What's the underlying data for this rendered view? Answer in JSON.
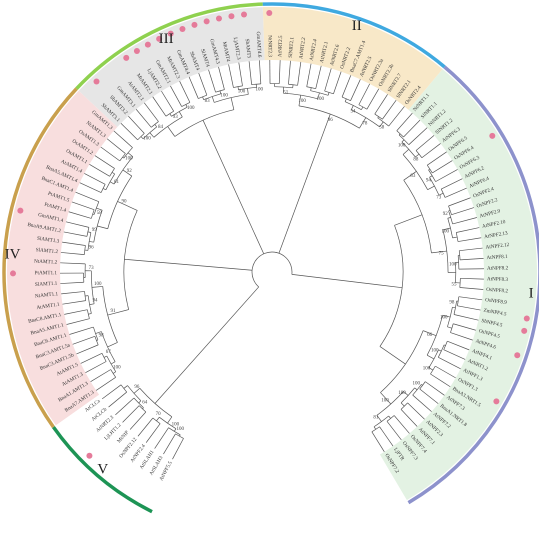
{
  "colors": {
    "I_bg": "#e3f2e3",
    "I_arc": "#8d92cc",
    "II_bg": "#f8e8c8",
    "II_arc": "#3fa9e0",
    "III_bg": "#e6e6e6",
    "III_arc": "#8fd14f",
    "IV_bg": "#f8dede",
    "IV_arc": "#c9a04d",
    "V_bg": "#ffffff",
    "V_arc": "#1d9455",
    "marker": "#e57b9a"
  },
  "clades": [
    {
      "key": "I",
      "label": "I"
    },
    {
      "key": "II",
      "label": "II"
    },
    {
      "key": "III",
      "label": "III"
    },
    {
      "key": "IV",
      "label": "IV"
    },
    {
      "key": "V",
      "label": "V"
    }
  ],
  "leaves": [
    {
      "label": "AtNPF5.5",
      "clade": "V",
      "marker": false
    },
    {
      "label": "AtSLAH3",
      "clade": "V",
      "marker": false
    },
    {
      "label": "AtSLAH1",
      "clade": "V",
      "marker": false
    },
    {
      "label": "AtNPF2.4",
      "clade": "V",
      "marker": false
    },
    {
      "label": "OsNPF2.12",
      "clade": "V",
      "marker": false
    },
    {
      "label": "MtNIP",
      "clade": "V",
      "marker": false
    },
    {
      "label": "LjLHT1.2",
      "clade": "V",
      "marker": true
    },
    {
      "label": "AtNRT2.3",
      "clade": "V",
      "marker": false
    },
    {
      "label": "AtCLCb",
      "clade": "V",
      "marker": false
    },
    {
      "label": "AtCLCa",
      "clade": "V",
      "marker": false
    },
    {
      "label": "BnaA7.AMT1.3",
      "clade": "IV",
      "marker": false
    },
    {
      "label": "BnaA1.AMT1.3",
      "clade": "IV",
      "marker": false
    },
    {
      "label": "AtAMT1.3",
      "clade": "IV",
      "marker": false
    },
    {
      "label": "AtAMT1.5",
      "clade": "IV",
      "marker": false
    },
    {
      "label": "BnaC3.AMT1.5b",
      "clade": "IV",
      "marker": false
    },
    {
      "label": "BnaC3.AMT1.5a",
      "clade": "IV",
      "marker": false
    },
    {
      "label": "BnaC6.AMT1.1",
      "clade": "IV",
      "marker": false
    },
    {
      "label": "BnaA5.AMT1.1",
      "clade": "IV",
      "marker": false
    },
    {
      "label": "BnaC8.AMT1.1",
      "clade": "IV",
      "marker": false
    },
    {
      "label": "AtAMT1.1",
      "clade": "IV",
      "marker": false
    },
    {
      "label": "NtAMT1.1",
      "clade": "IV",
      "marker": false
    },
    {
      "label": "SlAMT1.1",
      "clade": "IV",
      "marker": false
    },
    {
      "label": "PtAMT1.1",
      "clade": "IV",
      "marker": true
    },
    {
      "label": "NtAMT1.2",
      "clade": "IV",
      "marker": false
    },
    {
      "label": "SlAMT1.2",
      "clade": "IV",
      "marker": false
    },
    {
      "label": "SlAMT1.3",
      "clade": "IV",
      "marker": false
    },
    {
      "label": "BnaA9.AMT1.2",
      "clade": "IV",
      "marker": false
    },
    {
      "label": "GmAMT1.4",
      "clade": "IV",
      "marker": true
    },
    {
      "label": "PtAMT1.4",
      "clade": "IV",
      "marker": false
    },
    {
      "label": "PtAMT1.5",
      "clade": "IV",
      "marker": false
    },
    {
      "label": "BnaC1.AMT1.4",
      "clade": "IV",
      "marker": false
    },
    {
      "label": "BnaA5.AMT1.4",
      "clade": "IV",
      "marker": false
    },
    {
      "label": "AtAMT1.4",
      "clade": "IV",
      "marker": false
    },
    {
      "label": "OsAMT1.1",
      "clade": "IV",
      "marker": false
    },
    {
      "label": "OsAMT1.2",
      "clade": "IV",
      "marker": false
    },
    {
      "label": "OsAMT1.3",
      "clade": "IV",
      "marker": false
    },
    {
      "label": "NtAMT1.3",
      "clade": "IV",
      "marker": false
    },
    {
      "label": "GmAMT1.3",
      "clade": "IV",
      "marker": false
    },
    {
      "label": "SbAMT3.1",
      "clade": "III",
      "marker": false
    },
    {
      "label": "SbAMT3.2",
      "clade": "III",
      "marker": true
    },
    {
      "label": "GmAMT3.1",
      "clade": "III",
      "marker": false
    },
    {
      "label": "AtAMT2.1",
      "clade": "III",
      "marker": false
    },
    {
      "label": "MtAMT2.1",
      "clade": "III",
      "marker": true
    },
    {
      "label": "LjAMT2.2",
      "clade": "III",
      "marker": true
    },
    {
      "label": "GmAMT2.1",
      "clade": "III",
      "marker": true
    },
    {
      "label": "MtAMT2.3",
      "clade": "III",
      "marker": true
    },
    {
      "label": "GmAMT4.4",
      "clade": "III",
      "marker": true
    },
    {
      "label": "SbAMT4",
      "clade": "III",
      "marker": true
    },
    {
      "label": "SlAMT4",
      "clade": "III",
      "marker": true
    },
    {
      "label": "GmAMT4.3",
      "clade": "III",
      "marker": true
    },
    {
      "label": "MtAMT4",
      "clade": "III",
      "marker": true
    },
    {
      "label": "LjAMT2.3",
      "clade": "III",
      "marker": true
    },
    {
      "label": "SbAMT5",
      "clade": "III",
      "marker": true
    },
    {
      "label": "GmAMT4.6",
      "clade": "III",
      "marker": false
    },
    {
      "label": "NtNRT2.3",
      "clade": "II",
      "marker": true
    },
    {
      "label": "AtNRT2.5",
      "clade": "II",
      "marker": false
    },
    {
      "label": "SlNRT2.1",
      "clade": "II",
      "marker": false
    },
    {
      "label": "AtNRT2.2",
      "clade": "II",
      "marker": false
    },
    {
      "label": "AtNRT2.4",
      "clade": "II",
      "marker": false
    },
    {
      "label": "AtNRT2.1",
      "clade": "II",
      "marker": false
    },
    {
      "label": "AtNRT2.6",
      "clade": "II",
      "marker": false
    },
    {
      "label": "OsNRT2.2",
      "clade": "II",
      "marker": false
    },
    {
      "label": "BnaC7.AMT1.4",
      "clade": "II",
      "marker": false
    },
    {
      "label": "AtNRT2.5",
      "clade": "II",
      "marker": false
    },
    {
      "label": "OsNRT2.3a",
      "clade": "II",
      "marker": false
    },
    {
      "label": "OsNRT2.3b",
      "clade": "II",
      "marker": false
    },
    {
      "label": "SlNRT2.7",
      "clade": "II",
      "marker": false
    },
    {
      "label": "SlNRT2.1",
      "clade": "II",
      "marker": false
    },
    {
      "label": "OsNRT2.4",
      "clade": "II",
      "marker": false
    },
    {
      "label": "NtNRT1.1",
      "clade": "I",
      "marker": false
    },
    {
      "label": "SlNRT1.1",
      "clade": "I",
      "marker": false
    },
    {
      "label": "NtNRT1.2",
      "clade": "I",
      "marker": false
    },
    {
      "label": "SlNRT1.2",
      "clade": "I",
      "marker": false
    },
    {
      "label": "AtNPF6.3",
      "clade": "I",
      "marker": false
    },
    {
      "label": "OsNPF6.5",
      "clade": "I",
      "marker": false
    },
    {
      "label": "OsNPF6.4",
      "clade": "I",
      "marker": true
    },
    {
      "label": "OsNPF6.3",
      "clade": "I",
      "marker": false
    },
    {
      "label": "AtNPF6.2",
      "clade": "I",
      "marker": false
    },
    {
      "label": "AtNPF6.4",
      "clade": "I",
      "marker": false
    },
    {
      "label": "OsNPF2.4",
      "clade": "I",
      "marker": false
    },
    {
      "label": "OsNPF2.2",
      "clade": "I",
      "marker": false
    },
    {
      "label": "AtNPF2.9",
      "clade": "I",
      "marker": false
    },
    {
      "label": "AtNPF2.10",
      "clade": "I",
      "marker": false
    },
    {
      "label": "AtNPF2.13",
      "clade": "I",
      "marker": false
    },
    {
      "label": "AtNPF2.12",
      "clade": "I",
      "marker": false
    },
    {
      "label": "AtNPF8.1",
      "clade": "I",
      "marker": false
    },
    {
      "label": "AtNPF8.2",
      "clade": "I",
      "marker": false
    },
    {
      "label": "AtNPF8.3",
      "clade": "I",
      "marker": false
    },
    {
      "label": "OsNPF8.2",
      "clade": "I",
      "marker": false
    },
    {
      "label": "OsNPF8.9",
      "clade": "I",
      "marker": false
    },
    {
      "label": "ZmNPF4.5",
      "clade": "I",
      "marker": true
    },
    {
      "label": "SbNPF4.5",
      "clade": "I",
      "marker": true
    },
    {
      "label": "OsNPF4.5",
      "clade": "I",
      "marker": false
    },
    {
      "label": "AtNPF4.6",
      "clade": "I",
      "marker": true
    },
    {
      "label": "AtNPF4.1",
      "clade": "I",
      "marker": false
    },
    {
      "label": "AtNRT1.2",
      "clade": "I",
      "marker": false
    },
    {
      "label": "AtNPF1.3",
      "clade": "I",
      "marker": false
    },
    {
      "label": "OsNPF1.3",
      "clade": "I",
      "marker": true
    },
    {
      "label": "BnaA3.NRT1.5",
      "clade": "I",
      "marker": false
    },
    {
      "label": "AtNPF7.3",
      "clade": "I",
      "marker": false
    },
    {
      "label": "BnaA1.NRT1.8",
      "clade": "I",
      "marker": false
    },
    {
      "label": "AtNPF7.2",
      "clade": "I",
      "marker": false
    },
    {
      "label": "AtNPF2.3",
      "clade": "I",
      "marker": false
    },
    {
      "label": "AtNPF7.1",
      "clade": "I",
      "marker": false
    },
    {
      "label": "OsNPF7.4",
      "clade": "I",
      "marker": false
    },
    {
      "label": "OsNPF7.3",
      "clade": "I",
      "marker": false
    },
    {
      "label": "LjPTR",
      "clade": "I",
      "marker": false
    },
    {
      "label": "OsNPF7.2",
      "clade": "I",
      "marker": false
    }
  ],
  "bootstraps": [
    {
      "id": "b1",
      "value": "100"
    },
    {
      "id": "b2",
      "value": "100"
    },
    {
      "id": "b3",
      "value": "70"
    },
    {
      "id": "b4",
      "value": "64"
    },
    {
      "id": "b5",
      "value": "96"
    },
    {
      "id": "b6",
      "value": "100"
    },
    {
      "id": "b7",
      "value": "67"
    },
    {
      "id": "b8",
      "value": "98"
    },
    {
      "id": "b9",
      "value": "91"
    },
    {
      "id": "b10",
      "value": "94"
    },
    {
      "id": "b11",
      "value": "100"
    },
    {
      "id": "b12",
      "value": "73"
    },
    {
      "id": "b13",
      "value": "96"
    },
    {
      "id": "b14",
      "value": "99"
    },
    {
      "id": "b15",
      "value": "58"
    },
    {
      "id": "b16",
      "value": "90"
    },
    {
      "id": "b17",
      "value": "61"
    },
    {
      "id": "b18",
      "value": "92"
    },
    {
      "id": "b19",
      "value": "100"
    },
    {
      "id": "b20",
      "value": "100"
    },
    {
      "id": "b21",
      "value": "84"
    },
    {
      "id": "b22",
      "value": "93"
    },
    {
      "id": "b23",
      "value": "100"
    },
    {
      "id": "b24",
      "value": "83"
    },
    {
      "id": "b25",
      "value": "100"
    },
    {
      "id": "b26",
      "value": "100"
    },
    {
      "id": "b27",
      "value": "100"
    },
    {
      "id": "b28",
      "value": "51"
    },
    {
      "id": "b29",
      "value": "100"
    },
    {
      "id": "b30",
      "value": "100"
    },
    {
      "id": "b31",
      "value": "96"
    },
    {
      "id": "b32",
      "value": "54"
    },
    {
      "id": "b33",
      "value": "78"
    },
    {
      "id": "b34",
      "value": "58"
    },
    {
      "id": "b35",
      "value": "100"
    },
    {
      "id": "b36",
      "value": "88"
    },
    {
      "id": "b37",
      "value": "83"
    },
    {
      "id": "b38",
      "value": "94"
    },
    {
      "id": "b39",
      "value": "73"
    },
    {
      "id": "b40",
      "value": "92"
    },
    {
      "id": "b41",
      "value": "100"
    },
    {
      "id": "b42",
      "value": "75"
    },
    {
      "id": "b43",
      "value": "100"
    },
    {
      "id": "b44",
      "value": "55"
    },
    {
      "id": "b45",
      "value": "98"
    },
    {
      "id": "b46",
      "value": "100"
    },
    {
      "id": "b47",
      "value": "66"
    },
    {
      "id": "b48",
      "value": "100"
    },
    {
      "id": "b49",
      "value": "100"
    },
    {
      "id": "b50",
      "value": "100"
    },
    {
      "id": "b51",
      "value": "100"
    },
    {
      "id": "b52",
      "value": "100"
    },
    {
      "id": "b53",
      "value": "81"
    }
  ]
}
